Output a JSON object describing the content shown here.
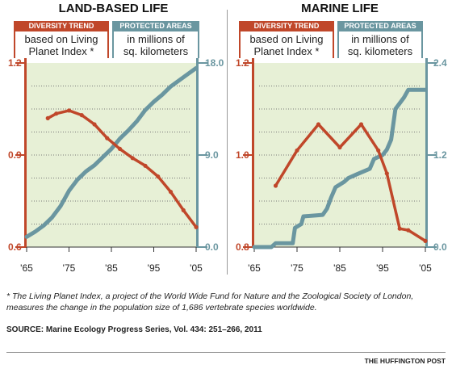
{
  "panels": [
    {
      "title": "LAND-BASED LIFE",
      "left_legend": {
        "head": "DIVERSITY TREND",
        "line1": "based on Living",
        "line2": "Planet Index *"
      },
      "right_legend": {
        "head": "PROTECTED AREAS",
        "line1": "in millions of",
        "line2": "sq. kilometers"
      }
    },
    {
      "title": "MARINE LIFE",
      "left_legend": {
        "head": "DIVERSITY TREND",
        "line1": "based on Living",
        "line2": "Planet Index *"
      },
      "right_legend": {
        "head": "PROTECTED AREAS",
        "line1": "in millions of",
        "line2": "sq. kilometers"
      }
    }
  ],
  "colors": {
    "diversity": "#c0472a",
    "protected": "#6a96a0",
    "plot_bg": "#e7f0d6"
  },
  "footnote": "* The Living Planet Index, a project of the World Wide Fund for Nature and the Zoological Society of London, measures the change in the population size of 1,686 vertebrate species worldwide.",
  "source": "SOURCE:  Marine Ecology Progress Series, Vol. 434: 251–266, 2011",
  "credit": "THE HUFFINGTON POST",
  "chart_data": [
    {
      "type": "line",
      "title": "LAND-BASED LIFE",
      "xlim": [
        1965,
        2005
      ],
      "x_ticks": [
        "'65",
        "'75",
        "'85",
        "'95",
        "'05"
      ],
      "y_left": {
        "label": "Diversity trend (Living Planet Index)",
        "ylim": [
          0.6,
          1.2
        ],
        "ticks": [
          "1.2",
          "0.9",
          "0.6"
        ]
      },
      "y_right": {
        "label": "Protected areas (millions of sq. km)",
        "ylim": [
          0,
          18
        ],
        "ticks": [
          "18.0",
          "9.0",
          "0.0"
        ]
      },
      "series": [
        {
          "name": "DIVERSITY TREND",
          "axis": "left",
          "x": [
            1970,
            1972,
            1975,
            1978,
            1981,
            1984,
            1987,
            1990,
            1993,
            1996,
            1999,
            2002,
            2005
          ],
          "values": [
            1.02,
            1.035,
            1.045,
            1.03,
            1.0,
            0.955,
            0.92,
            0.89,
            0.865,
            0.83,
            0.78,
            0.72,
            0.665
          ]
        },
        {
          "name": "PROTECTED AREAS",
          "axis": "right",
          "x": [
            1965,
            1967,
            1969,
            1971,
            1973,
            1975,
            1977,
            1979,
            1981,
            1983,
            1985,
            1987,
            1989,
            1991,
            1993,
            1995,
            1997,
            1999,
            2001,
            2003,
            2005
          ],
          "values": [
            1.0,
            1.5,
            2.1,
            2.9,
            4.0,
            5.5,
            6.6,
            7.4,
            8.0,
            8.8,
            9.6,
            10.6,
            11.4,
            12.3,
            13.4,
            14.2,
            14.9,
            15.7,
            16.3,
            16.9,
            17.5
          ]
        }
      ]
    },
    {
      "type": "line",
      "title": "MARINE LIFE",
      "xlim": [
        1965,
        2005
      ],
      "x_ticks": [
        "'65",
        "'75",
        "'85",
        "'95",
        "'05"
      ],
      "y_left": {
        "label": "Diversity trend (Living Planet Index)",
        "ylim": [
          0.8,
          1.4
        ],
        "ticks": [
          "1.2",
          "1.0",
          "0.8"
        ]
      },
      "y_right": {
        "label": "Protected areas (millions of sq. km)",
        "ylim": [
          0,
          2.4
        ],
        "ticks": [
          "2.4",
          "1.2",
          "0.0"
        ]
      },
      "series": [
        {
          "name": "DIVERSITY TREND",
          "axis": "left",
          "x": [
            1970,
            1975,
            1980,
            1985,
            1990,
            1994,
            1996,
            1999,
            2001,
            2005
          ],
          "values": [
            1.0,
            1.115,
            1.2,
            1.125,
            1.2,
            1.115,
            1.04,
            0.86,
            0.855,
            0.82
          ]
        },
        {
          "name": "PROTECTED AREAS",
          "axis": "right",
          "x": [
            1965,
            1969,
            1970,
            1974,
            1974.5,
            1976,
            1976.5,
            1981,
            1982,
            1983,
            1984,
            1986,
            1987,
            1989,
            1992,
            1993,
            1995,
            1996,
            1997,
            1998,
            2000,
            2001,
            2005
          ],
          "values": [
            0.0,
            0.0,
            0.05,
            0.05,
            0.25,
            0.3,
            0.4,
            0.42,
            0.5,
            0.65,
            0.78,
            0.85,
            0.9,
            0.95,
            1.02,
            1.15,
            1.2,
            1.27,
            1.4,
            1.8,
            1.95,
            2.05,
            2.05
          ]
        }
      ]
    }
  ]
}
